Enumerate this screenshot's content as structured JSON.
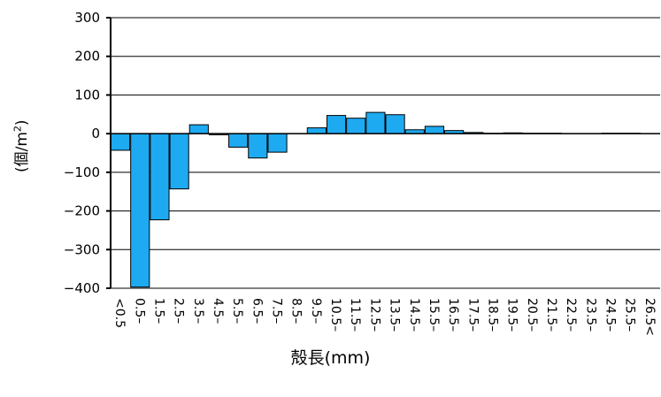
{
  "chart_data": {
    "type": "bar",
    "title": "",
    "xlabel": "殻長(mm)",
    "ylabel_main": "(個/m",
    "ylabel_sup": "2",
    "ylabel_close": ")",
    "ylim": [
      -400,
      300
    ],
    "yticks": [
      300,
      200,
      100,
      0,
      -100,
      -200,
      -300,
      -400
    ],
    "grid": true,
    "bar_color": "#1eaaf1",
    "categories": [
      "<0.5",
      "0.5–",
      "1.5–",
      "2.5–",
      "3.5–",
      "4.5–",
      "5.5–",
      "6.5–",
      "7.5–",
      "8.5–",
      "9.5–",
      "10.5–",
      "11.5–",
      "12.5–",
      "13.5–",
      "14.5–",
      "15.5–",
      "16.5–",
      "17.5–",
      "18.5–",
      "19.5–",
      "20.5–",
      "21.5–",
      "22.5–",
      "23.5–",
      "24.5–",
      "25.5–",
      "26.5<"
    ],
    "values": [
      -43,
      -397,
      -223,
      -143,
      23,
      -3,
      -35,
      -63,
      -48,
      0,
      15,
      47,
      40,
      55,
      49,
      10,
      19,
      8,
      3,
      1,
      2,
      1,
      1,
      0,
      0,
      1,
      1,
      0
    ]
  }
}
